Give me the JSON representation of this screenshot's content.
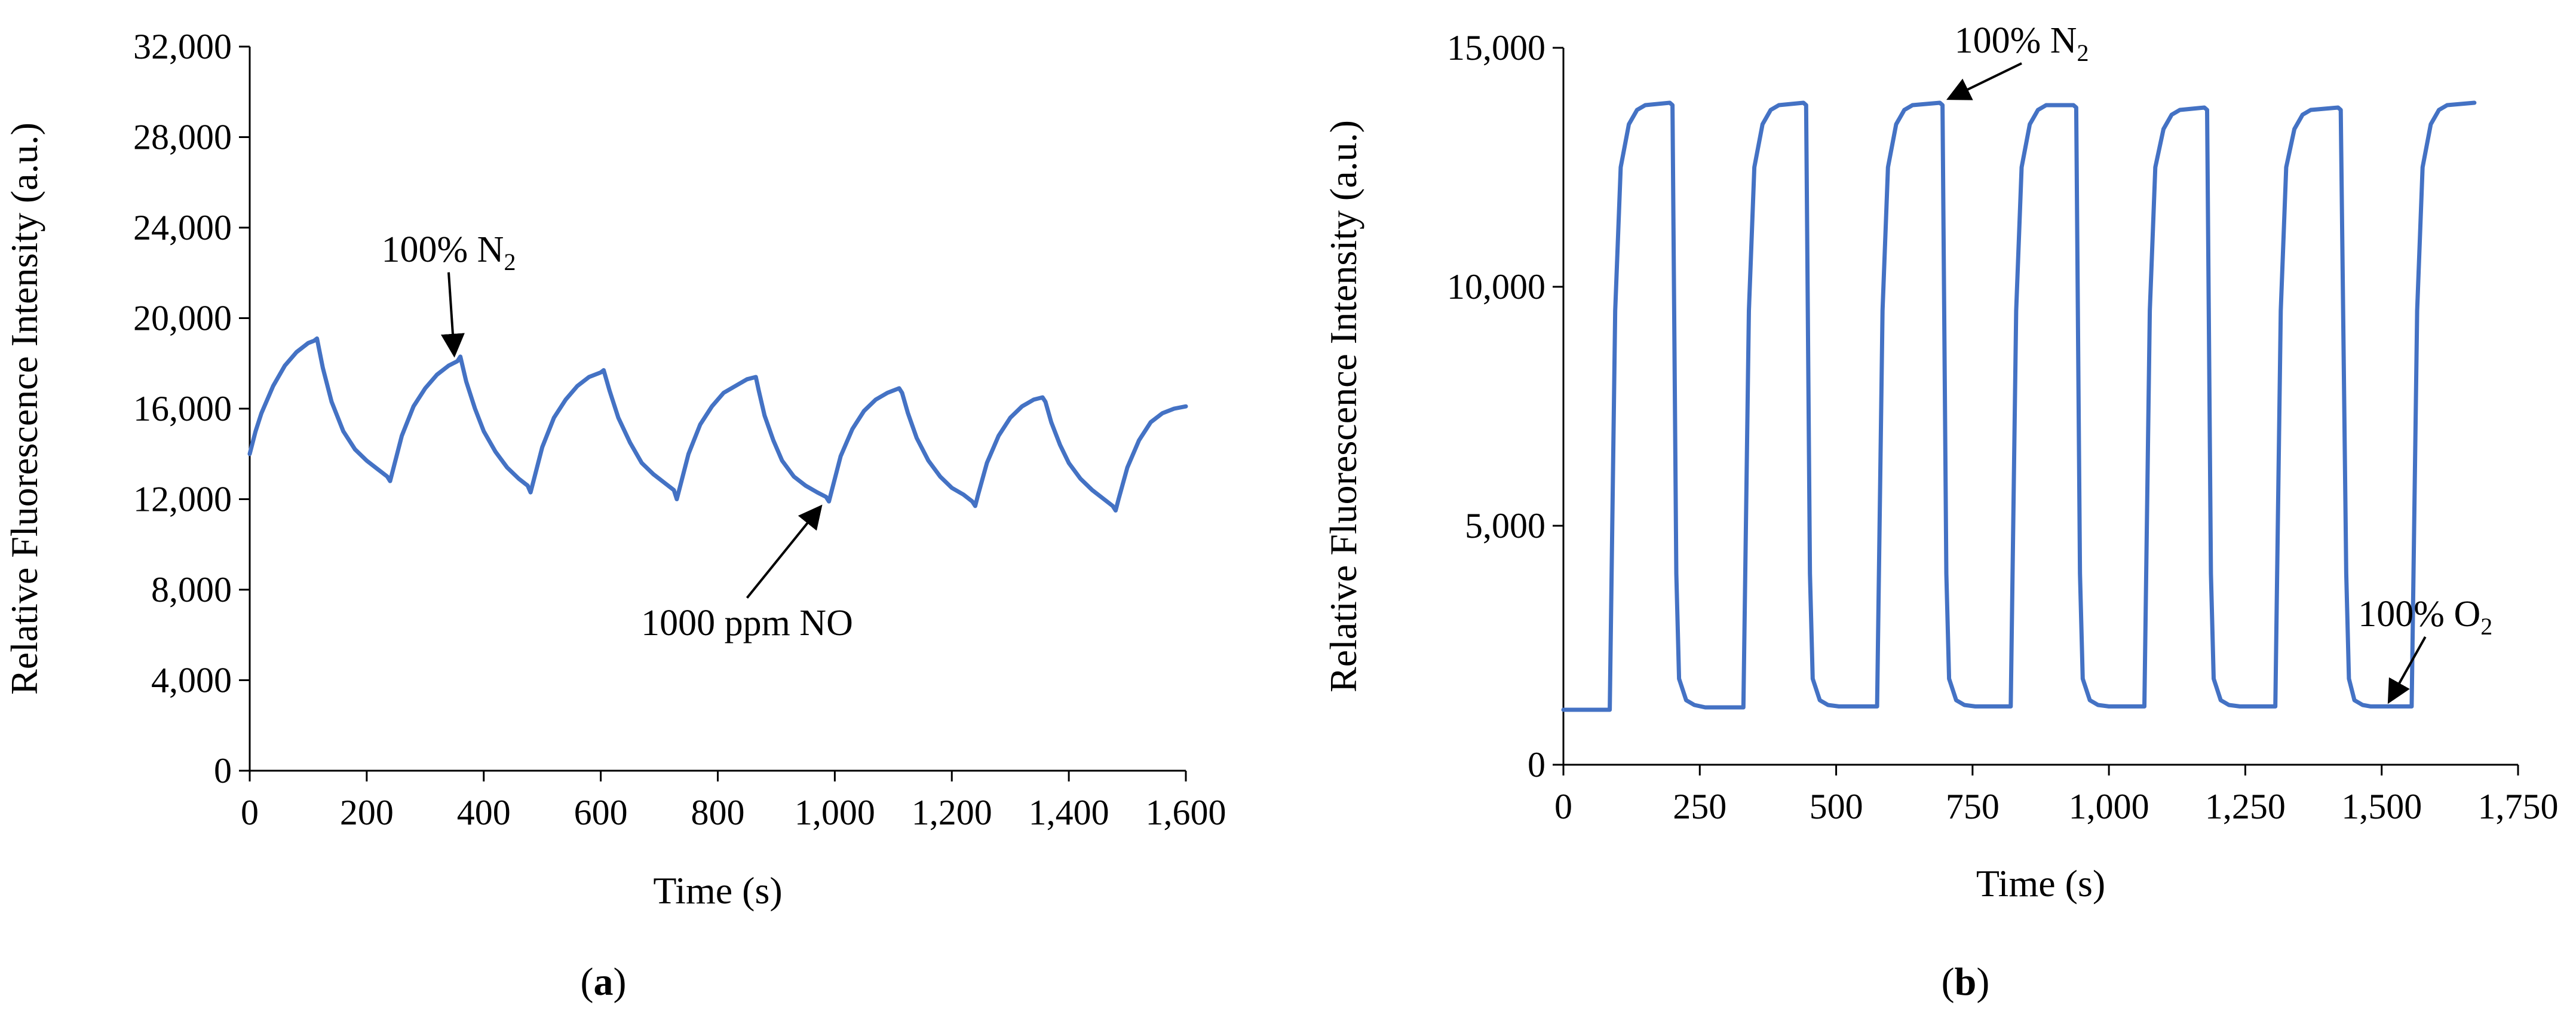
{
  "colors": {
    "series": "#4472C4",
    "axis": "#000000"
  },
  "chart_data": [
    {
      "type": "line",
      "panel_label": "a",
      "xlabel": "Time (s)",
      "ylabel": "Relative Fluorescence Intensity (a.u.)",
      "xlim": [
        0,
        1600
      ],
      "ylim": [
        0,
        32000
      ],
      "x_ticks": [
        0,
        200,
        400,
        600,
        800,
        1000,
        1200,
        1400,
        1600
      ],
      "x_tick_labels": [
        "0",
        "200",
        "400",
        "600",
        "800",
        "1,000",
        "1,200",
        "1,400",
        "1,600"
      ],
      "y_ticks": [
        0,
        4000,
        8000,
        12000,
        16000,
        20000,
        24000,
        28000,
        32000
      ],
      "y_tick_labels": [
        "0",
        "4,000",
        "8,000",
        "12,000",
        "16,000",
        "20,000",
        "24,000",
        "28,000",
        "32,000"
      ],
      "grid": false,
      "series": [
        {
          "x": [
            0,
            10,
            20,
            40,
            60,
            80,
            100,
            110,
            115,
            125,
            140,
            160,
            180,
            200,
            220,
            235,
            240,
            245,
            260,
            280,
            300,
            320,
            340,
            355,
            360,
            370,
            385,
            400,
            420,
            440,
            460,
            475,
            480,
            485,
            500,
            520,
            540,
            560,
            580,
            600,
            605,
            615,
            630,
            650,
            670,
            690,
            710,
            725,
            730,
            735,
            750,
            770,
            790,
            810,
            830,
            850,
            865,
            870,
            880,
            895,
            910,
            930,
            950,
            970,
            985,
            990,
            995,
            1010,
            1030,
            1050,
            1070,
            1090,
            1110,
            1115,
            1125,
            1140,
            1160,
            1180,
            1200,
            1220,
            1235,
            1240,
            1245,
            1260,
            1280,
            1300,
            1320,
            1340,
            1355,
            1360,
            1370,
            1385,
            1400,
            1420,
            1440,
            1460,
            1475,
            1480,
            1485,
            1500,
            1520,
            1540,
            1560,
            1580,
            1600
          ],
          "y": [
            14000,
            15000,
            15800,
            17000,
            17900,
            18500,
            18900,
            19000,
            19100,
            17800,
            16300,
            15000,
            14200,
            13700,
            13300,
            13000,
            12800,
            13300,
            14800,
            16100,
            16900,
            17500,
            17900,
            18100,
            18300,
            17200,
            16000,
            15000,
            14100,
            13400,
            12900,
            12600,
            12300,
            12800,
            14300,
            15600,
            16400,
            17000,
            17400,
            17600,
            17700,
            16800,
            15600,
            14500,
            13600,
            13100,
            12700,
            12400,
            12000,
            12500,
            14000,
            15300,
            16100,
            16700,
            17000,
            17300,
            17400,
            16800,
            15700,
            14600,
            13700,
            13000,
            12600,
            12300,
            12100,
            11900,
            12400,
            13900,
            15100,
            15900,
            16400,
            16700,
            16900,
            16700,
            15800,
            14700,
            13700,
            13000,
            12500,
            12200,
            11900,
            11700,
            12200,
            13600,
            14800,
            15600,
            16100,
            16400,
            16500,
            16300,
            15400,
            14400,
            13600,
            12900,
            12400,
            12000,
            11700,
            11500,
            12000,
            13400,
            14600,
            15400,
            15800,
            16000,
            16100
          ]
        }
      ],
      "annotations": [
        {
          "text": "100% N",
          "subscript": "2",
          "x": 350,
          "y": 18200,
          "label_x": 340,
          "label_y": 22500
        },
        {
          "text": "1000 ppm NO",
          "subscript": "",
          "x": 980,
          "y": 11800,
          "label_x": 850,
          "label_y": 6000
        }
      ]
    },
    {
      "type": "line",
      "panel_label": "b",
      "xlabel": "Time (s)",
      "ylabel": "Relative Fluorescence Intensity (a.u.)",
      "xlim": [
        0,
        1750
      ],
      "ylim": [
        0,
        15000
      ],
      "x_ticks": [
        0,
        250,
        500,
        750,
        1000,
        1250,
        1500,
        1750
      ],
      "x_tick_labels": [
        "0",
        "250",
        "500",
        "750",
        "1,000",
        "1,250",
        "1,500",
        "1,750"
      ],
      "y_ticks": [
        0,
        5000,
        10000,
        15000
      ],
      "y_tick_labels": [
        "0",
        "5,000",
        "10,000",
        "15,000"
      ],
      "grid": false,
      "series": [
        {
          "x": [
            0,
            85,
            95,
            105,
            120,
            135,
            150,
            195,
            200,
            207,
            212,
            225,
            240,
            260,
            330,
            340,
            350,
            365,
            380,
            395,
            440,
            445,
            452,
            457,
            470,
            485,
            505,
            575,
            585,
            595,
            610,
            625,
            640,
            690,
            695,
            702,
            707,
            720,
            735,
            755,
            820,
            830,
            840,
            855,
            870,
            885,
            935,
            940,
            947,
            952,
            965,
            980,
            1000,
            1065,
            1075,
            1085,
            1100,
            1115,
            1130,
            1175,
            1180,
            1187,
            1192,
            1205,
            1220,
            1240,
            1305,
            1315,
            1325,
            1340,
            1355,
            1370,
            1420,
            1425,
            1435,
            1440,
            1450,
            1465,
            1480,
            1555,
            1565,
            1575,
            1590,
            1605,
            1620,
            1670
          ],
          "y": [
            1150,
            1150,
            9500,
            12500,
            13400,
            13700,
            13800,
            13850,
            13800,
            4000,
            1800,
            1350,
            1250,
            1200,
            1200,
            9500,
            12500,
            13400,
            13700,
            13800,
            13850,
            13800,
            4000,
            1800,
            1350,
            1250,
            1220,
            1220,
            9500,
            12500,
            13400,
            13700,
            13800,
            13850,
            13800,
            4000,
            1800,
            1350,
            1250,
            1220,
            1220,
            9500,
            12500,
            13400,
            13700,
            13800,
            13800,
            13750,
            4000,
            1800,
            1350,
            1250,
            1220,
            1220,
            9500,
            12500,
            13300,
            13600,
            13700,
            13750,
            13700,
            4000,
            1800,
            1350,
            1250,
            1220,
            1220,
            9500,
            12500,
            13300,
            13600,
            13700,
            13750,
            13700,
            4000,
            1800,
            1350,
            1250,
            1220,
            1220,
            9500,
            12500,
            13400,
            13700,
            13800,
            13850
          ]
        }
      ],
      "annotations": [
        {
          "text": "100% N",
          "subscript": "2",
          "x": 700,
          "y": 13900,
          "label_x": 840,
          "label_y": 14900
        },
        {
          "text": "100% O",
          "subscript": "2",
          "x": 1510,
          "y": 1250,
          "label_x": 1580,
          "label_y": 2900
        }
      ]
    }
  ]
}
